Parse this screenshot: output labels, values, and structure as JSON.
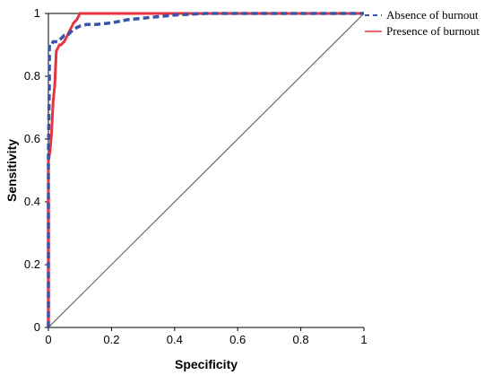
{
  "chart_data": {
    "type": "line",
    "xlabel": "Specificity",
    "ylabel": "Sensitivity",
    "xlim": [
      0,
      1
    ],
    "ylim": [
      0,
      1
    ],
    "x_ticks": [
      "0",
      "0.2",
      "0.4",
      "0.6",
      "0.8",
      "1"
    ],
    "y_ticks": [
      "0",
      "0.2",
      "0.4",
      "0.6",
      "0.8",
      "1"
    ],
    "grid": false,
    "legend_position": "top-right",
    "series": [
      {
        "name": "Absence of burnout",
        "color": "#3a55a8",
        "style": "dashed",
        "x": [
          0,
          0,
          0.003,
          0.003,
          0.01,
          0.015,
          0.02,
          0.03,
          0.04,
          0.05,
          0.06,
          0.07,
          0.08,
          0.09,
          0.1,
          0.12,
          0.15,
          0.2,
          0.25,
          0.3,
          0.35,
          0.4,
          0.5,
          1
        ],
        "y": [
          0,
          0.55,
          0.78,
          0.9,
          0.9,
          0.91,
          0.91,
          0.91,
          0.92,
          0.93,
          0.93,
          0.94,
          0.95,
          0.955,
          0.96,
          0.965,
          0.965,
          0.97,
          0.98,
          0.985,
          0.99,
          0.995,
          1,
          1
        ]
      },
      {
        "name": "Presence of burnout",
        "color": "#e8323c",
        "style": "solid",
        "x": [
          0,
          0,
          0.005,
          0.01,
          0.015,
          0.02,
          0.025,
          0.03,
          0.035,
          0.04,
          0.05,
          0.06,
          0.065,
          0.07,
          0.08,
          0.09,
          0.1,
          0.12,
          1
        ],
        "y": [
          0,
          0.53,
          0.56,
          0.62,
          0.72,
          0.77,
          0.88,
          0.89,
          0.9,
          0.9,
          0.91,
          0.93,
          0.94,
          0.95,
          0.97,
          0.98,
          1,
          1,
          1
        ]
      },
      {
        "name": "",
        "color": "#555555",
        "style": "solid",
        "x": [
          0,
          1
        ],
        "y": [
          0,
          1
        ]
      }
    ]
  }
}
